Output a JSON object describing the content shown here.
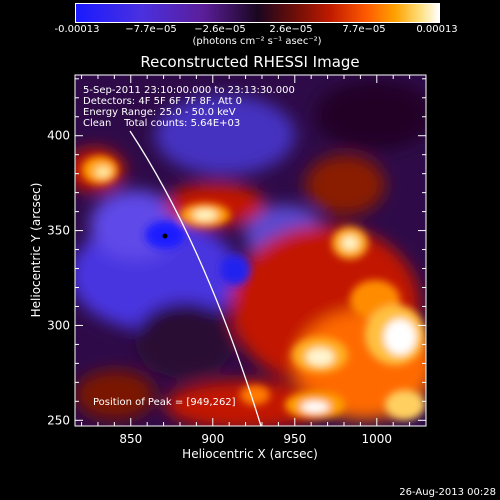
{
  "colorbar": {
    "ticks": [
      "-0.00013",
      "−7.7e−05",
      "−2.6e−05",
      "2.6e−05",
      "7.7e−05",
      "0.00013"
    ],
    "units": "(photons cm⁻² s⁻¹ asec⁻²)"
  },
  "plot": {
    "title": "Reconstructed RHESSI Image",
    "annotations": [
      "5-Sep-2011 23:10:00.000 to 23:13:30.000",
      "Detectors: 4F 5F 6F 7F 8F, Att 0",
      "Energy Range: 25.0 - 50.0 keV",
      "Clean    Total counts: 5.64E+03"
    ],
    "peak_label": "Position of Peak = [949,262]"
  },
  "footer": "26-Aug-2013 00:28",
  "chart_data": {
    "type": "heatmap",
    "title": "Reconstructed RHESSI Image",
    "xlabel": "Heliocentric X (arcsec)",
    "ylabel": "Heliocentric Y (arcsec)",
    "xlim": [
      816,
      1030
    ],
    "ylim": [
      247,
      432
    ],
    "xticks": [
      850,
      900,
      950,
      1000
    ],
    "yticks": [
      250,
      300,
      350,
      400
    ],
    "color_scale": {
      "min": -0.00013,
      "max": 0.00013,
      "colors": [
        "#1a1aff",
        "#5b1e9a",
        "#1a0620",
        "#c01a00",
        "#ff8c00",
        "#ffffff"
      ]
    },
    "peak_position": [
      949,
      262
    ],
    "grid": false
  }
}
